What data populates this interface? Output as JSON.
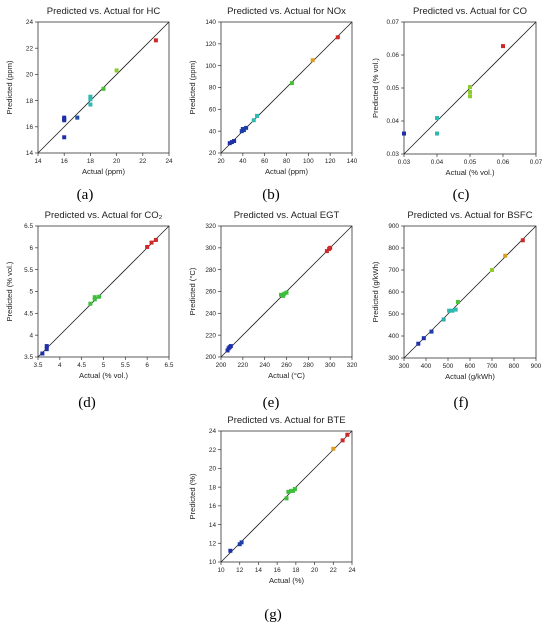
{
  "chart_data": [
    {
      "type": "scatter",
      "title": "Predicted vs. Actual for HC",
      "xlabel": "Actual (ppm)",
      "ylabel": "Predicted (ppm)",
      "caption": "(a)",
      "xlim": [
        14,
        24
      ],
      "ylim": [
        14,
        24
      ],
      "xticks": [
        14,
        16,
        18,
        20,
        22,
        24
      ],
      "yticks": [
        14,
        16,
        18,
        20,
        22,
        24
      ],
      "points": [
        {
          "x": 16,
          "y": 15.2,
          "color": "#1f2fa8"
        },
        {
          "x": 16,
          "y": 16.5,
          "color": "#1f2fa8"
        },
        {
          "x": 16,
          "y": 16.6,
          "color": "#1f2fa8"
        },
        {
          "x": 16,
          "y": 16.7,
          "color": "#1f2fa8"
        },
        {
          "x": 17,
          "y": 16.7,
          "color": "#1f4fa8"
        },
        {
          "x": 18,
          "y": 17.7,
          "color": "#2fb8b0"
        },
        {
          "x": 18,
          "y": 18.1,
          "color": "#2fb8b0"
        },
        {
          "x": 18,
          "y": 18.3,
          "color": "#2fb8b0"
        },
        {
          "x": 19,
          "y": 18.9,
          "color": "#4cbf3a"
        },
        {
          "x": 20,
          "y": 20.3,
          "color": "#8fca2f"
        },
        {
          "x": 23,
          "y": 22.6,
          "color": "#cc2a2a"
        }
      ]
    },
    {
      "type": "scatter",
      "title": "Predicted vs. Actual for NOx",
      "xlabel": "Actual (ppm)",
      "ylabel": "Predicted (ppm)",
      "caption": "(b)",
      "xlim": [
        20,
        140
      ],
      "ylim": [
        20,
        140
      ],
      "xticks": [
        20,
        40,
        60,
        80,
        100,
        120,
        140
      ],
      "yticks": [
        20,
        40,
        60,
        80,
        100,
        120,
        140
      ],
      "points": [
        {
          "x": 28,
          "y": 29,
          "color": "#1f2fa8"
        },
        {
          "x": 30,
          "y": 30,
          "color": "#1f2fa8"
        },
        {
          "x": 32,
          "y": 31,
          "color": "#1f2fa8"
        },
        {
          "x": 39,
          "y": 40,
          "color": "#1f3fa8"
        },
        {
          "x": 40,
          "y": 42,
          "color": "#1f3fa8"
        },
        {
          "x": 41,
          "y": 41,
          "color": "#1f3fa8"
        },
        {
          "x": 43,
          "y": 43,
          "color": "#1f3fa8"
        },
        {
          "x": 50,
          "y": 50,
          "color": "#2fb8b0"
        },
        {
          "x": 53,
          "y": 54,
          "color": "#2fb8b0"
        },
        {
          "x": 85,
          "y": 84,
          "color": "#4cbf3a"
        },
        {
          "x": 104,
          "y": 105,
          "color": "#d9a020"
        },
        {
          "x": 127,
          "y": 126,
          "color": "#cc2a2a"
        }
      ]
    },
    {
      "type": "scatter",
      "title": "Predicted vs. Actual for CO",
      "xlabel": "Actual (% vol.)",
      "ylabel": "Predicted (% vol.)",
      "caption": "(c)",
      "xlim": [
        0.03,
        0.07
      ],
      "ylim": [
        0.03,
        0.07
      ],
      "xticks": [
        0.03,
        0.04,
        0.05,
        0.06,
        0.07
      ],
      "yticks": [
        0.03,
        0.04,
        0.05,
        0.06,
        0.07
      ],
      "tick_labels": [
        "0.03",
        "0.04",
        "0.05",
        "0.06",
        "0.07"
      ],
      "points": [
        {
          "x": 0.03,
          "y": 0.0362,
          "color": "#1f2fa8"
        },
        {
          "x": 0.04,
          "y": 0.0362,
          "color": "#2fb8b0"
        },
        {
          "x": 0.04,
          "y": 0.0409,
          "color": "#2fb8b0"
        },
        {
          "x": 0.05,
          "y": 0.0475,
          "color": "#8fca2f"
        },
        {
          "x": 0.05,
          "y": 0.0488,
          "color": "#8fca2f"
        },
        {
          "x": 0.05,
          "y": 0.0503,
          "color": "#8fca2f"
        },
        {
          "x": 0.06,
          "y": 0.0627,
          "color": "#cc2a2a"
        }
      ]
    },
    {
      "type": "scatter",
      "title": "Predicted vs. Actual for CO₂",
      "xlabel": "Actual (% vol.)",
      "ylabel": "Predicted (% vol.)",
      "caption": "(d)",
      "xlim": [
        3.5,
        6.5
      ],
      "ylim": [
        3.5,
        6.5
      ],
      "xticks": [
        3.5,
        4,
        4.5,
        5,
        5.5,
        6,
        6.5
      ],
      "yticks": [
        3.5,
        4,
        4.5,
        5,
        5.5,
        6,
        6.5
      ],
      "points": [
        {
          "x": 3.6,
          "y": 3.58,
          "color": "#1f2fa8"
        },
        {
          "x": 3.7,
          "y": 3.68,
          "color": "#1f2fa8"
        },
        {
          "x": 3.7,
          "y": 3.75,
          "color": "#1f2fa8"
        },
        {
          "x": 4.7,
          "y": 4.72,
          "color": "#3cbf3a"
        },
        {
          "x": 4.8,
          "y": 4.82,
          "color": "#3cbf3a"
        },
        {
          "x": 4.8,
          "y": 4.87,
          "color": "#3cbf3a"
        },
        {
          "x": 4.9,
          "y": 4.88,
          "color": "#3cbf3a"
        },
        {
          "x": 6.0,
          "y": 6.02,
          "color": "#cc2a2a"
        },
        {
          "x": 6.1,
          "y": 6.12,
          "color": "#cc2a2a"
        },
        {
          "x": 6.2,
          "y": 6.18,
          "color": "#cc2a2a"
        }
      ]
    },
    {
      "type": "scatter",
      "title": "Predicted vs. Actual EGT",
      "xlabel": "Actual  (°C)",
      "ylabel": "Predicted (°C)",
      "caption": "(e)",
      "xlim": [
        200,
        320
      ],
      "ylim": [
        200,
        320
      ],
      "xticks": [
        200,
        220,
        240,
        260,
        280,
        300,
        320
      ],
      "yticks": [
        200,
        220,
        240,
        260,
        280,
        300,
        320
      ],
      "points": [
        {
          "x": 206,
          "y": 206,
          "color": "#1f2fa8"
        },
        {
          "x": 207,
          "y": 208,
          "color": "#1f2fa8"
        },
        {
          "x": 208,
          "y": 209,
          "color": "#1f2fa8"
        },
        {
          "x": 209,
          "y": 210,
          "color": "#1f2fa8"
        },
        {
          "x": 255,
          "y": 257,
          "color": "#3cbf3a"
        },
        {
          "x": 257,
          "y": 256,
          "color": "#3cbf3a"
        },
        {
          "x": 258,
          "y": 258,
          "color": "#3cbf3a"
        },
        {
          "x": 260,
          "y": 259,
          "color": "#3cbf3a"
        },
        {
          "x": 297,
          "y": 297,
          "color": "#cc2a2a"
        },
        {
          "x": 299,
          "y": 299,
          "color": "#cc2a2a"
        },
        {
          "x": 300,
          "y": 300,
          "color": "#cc2a2a"
        }
      ]
    },
    {
      "type": "scatter",
      "title": "Predicted vs. Actual for BSFC",
      "xlabel": "Actual (g/kWh)",
      "ylabel": "Predicted (g/kWh)",
      "caption": "(f)",
      "xlim": [
        300,
        900
      ],
      "ylim": [
        300,
        900
      ],
      "xticks": [
        300,
        400,
        500,
        600,
        700,
        800,
        900
      ],
      "yticks": [
        300,
        400,
        500,
        600,
        700,
        800,
        900
      ],
      "points": [
        {
          "x": 365,
          "y": 365,
          "color": "#1f2fa8"
        },
        {
          "x": 390,
          "y": 390,
          "color": "#1f2fa8"
        },
        {
          "x": 425,
          "y": 420,
          "color": "#1f3fa8"
        },
        {
          "x": 480,
          "y": 475,
          "color": "#2fa8b0"
        },
        {
          "x": 505,
          "y": 515,
          "color": "#2fb8b0"
        },
        {
          "x": 520,
          "y": 515,
          "color": "#2fb8b0"
        },
        {
          "x": 535,
          "y": 520,
          "color": "#2fb8b0"
        },
        {
          "x": 545,
          "y": 555,
          "color": "#4cbf3a"
        },
        {
          "x": 700,
          "y": 700,
          "color": "#8fca2f"
        },
        {
          "x": 760,
          "y": 765,
          "color": "#d9a020"
        },
        {
          "x": 840,
          "y": 835,
          "color": "#cc2a2a"
        }
      ]
    },
    {
      "type": "scatter",
      "title": "Predicted vs. Actual for BTE",
      "xlabel": "Actual (%)",
      "ylabel": "Predicted (%)",
      "caption": "(g)",
      "xlim": [
        10,
        24
      ],
      "ylim": [
        10,
        24
      ],
      "xticks": [
        10,
        12,
        14,
        16,
        18,
        20,
        22,
        24
      ],
      "yticks": [
        10,
        12,
        14,
        16,
        18,
        20,
        22,
        24
      ],
      "points": [
        {
          "x": 11,
          "y": 11.2,
          "color": "#1f2fa8"
        },
        {
          "x": 12,
          "y": 11.9,
          "color": "#1f3fa8"
        },
        {
          "x": 12.2,
          "y": 12.1,
          "color": "#1f3fa8"
        },
        {
          "x": 17.0,
          "y": 16.8,
          "color": "#3cbf3a"
        },
        {
          "x": 17.2,
          "y": 17.5,
          "color": "#3cbf3a"
        },
        {
          "x": 17.5,
          "y": 17.6,
          "color": "#3cbf3a"
        },
        {
          "x": 17.7,
          "y": 17.6,
          "color": "#3cbf3a"
        },
        {
          "x": 17.9,
          "y": 17.8,
          "color": "#3cbf3a"
        },
        {
          "x": 22,
          "y": 22.1,
          "color": "#d9a020"
        },
        {
          "x": 23,
          "y": 23.0,
          "color": "#cc2a2a"
        },
        {
          "x": 23.5,
          "y": 23.6,
          "color": "#cc2a2a"
        }
      ]
    }
  ]
}
